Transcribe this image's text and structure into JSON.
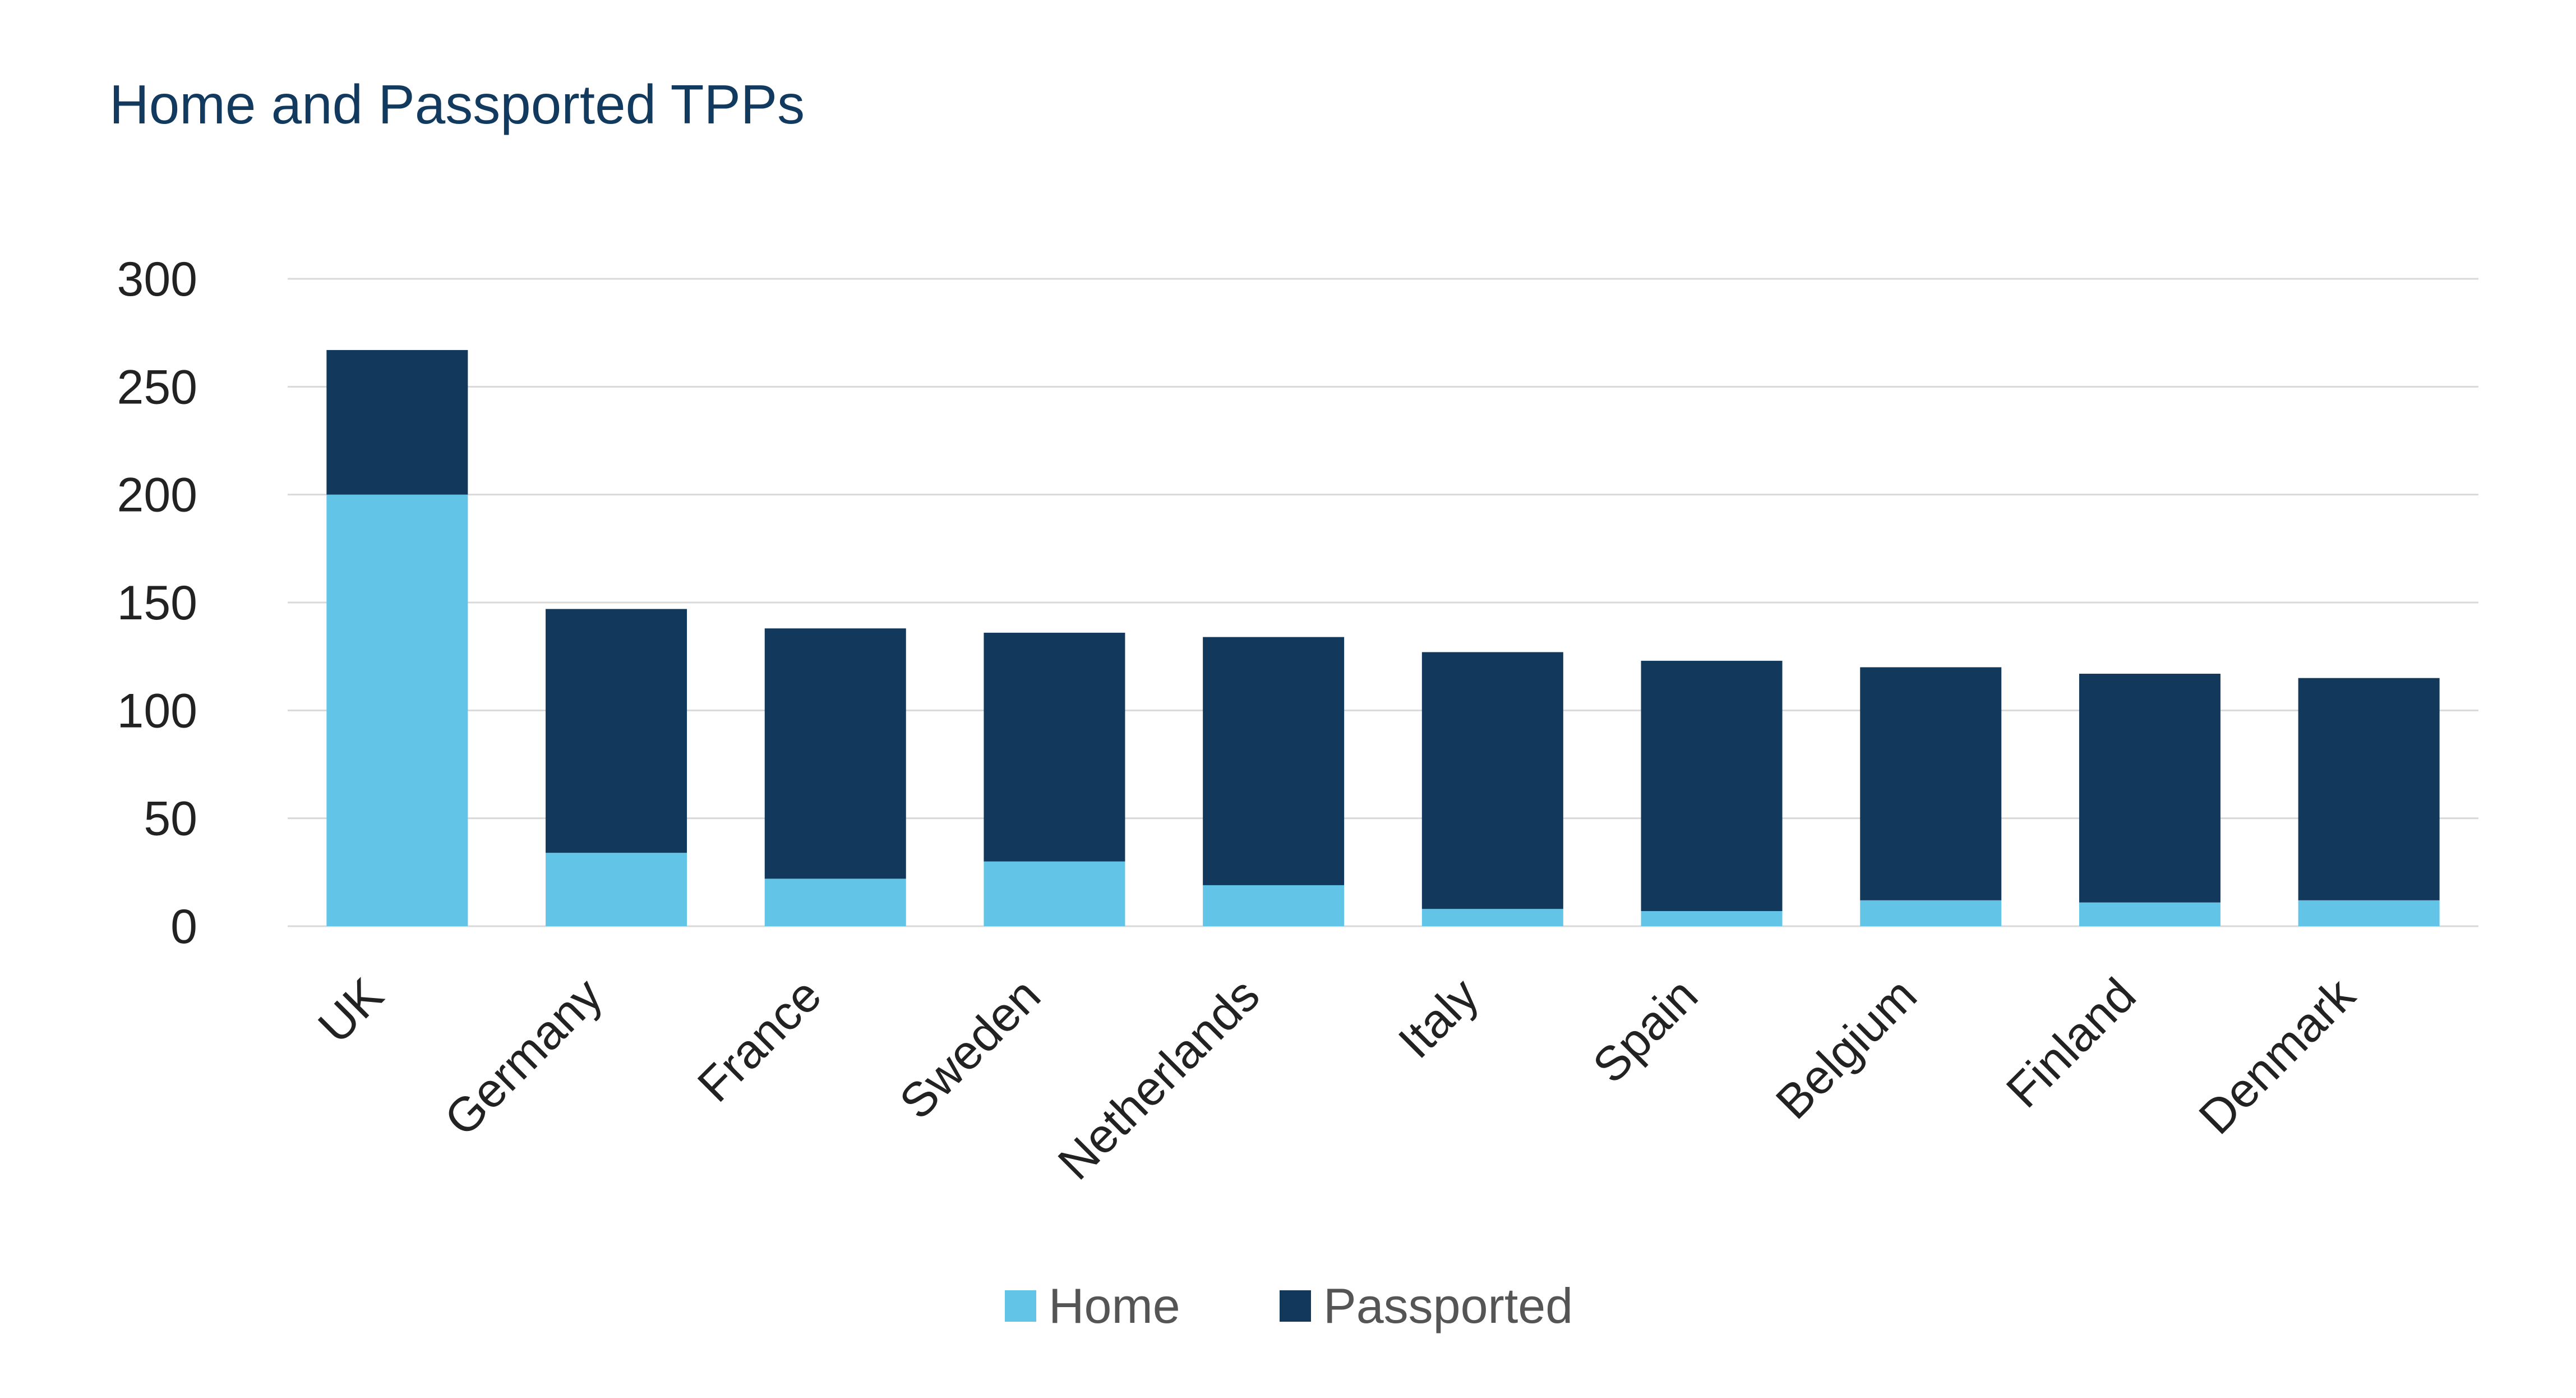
{
  "chart_data": {
    "type": "bar",
    "stacked": true,
    "title": "Home and Passported TPPs",
    "xlabel": "",
    "ylabel": "",
    "ylim": [
      0,
      300
    ],
    "yticks": [
      "0",
      "50",
      "100",
      "150",
      "200",
      "250",
      "300"
    ],
    "categories": [
      "UK",
      "Germany",
      "France",
      "Sweden",
      "Netherlands",
      "Italy",
      "Spain",
      "Belgium",
      "Finland",
      "Denmark"
    ],
    "series": [
      {
        "name": "Home",
        "color": "#62c5e8",
        "values": [
          200,
          34,
          22,
          30,
          19,
          8,
          7,
          12,
          11,
          12
        ]
      },
      {
        "name": "Passported",
        "color": "#12395c",
        "values": [
          67,
          113,
          116,
          106,
          115,
          119,
          116,
          108,
          106,
          103
        ]
      }
    ],
    "grid": true,
    "legend_position": "bottom"
  }
}
